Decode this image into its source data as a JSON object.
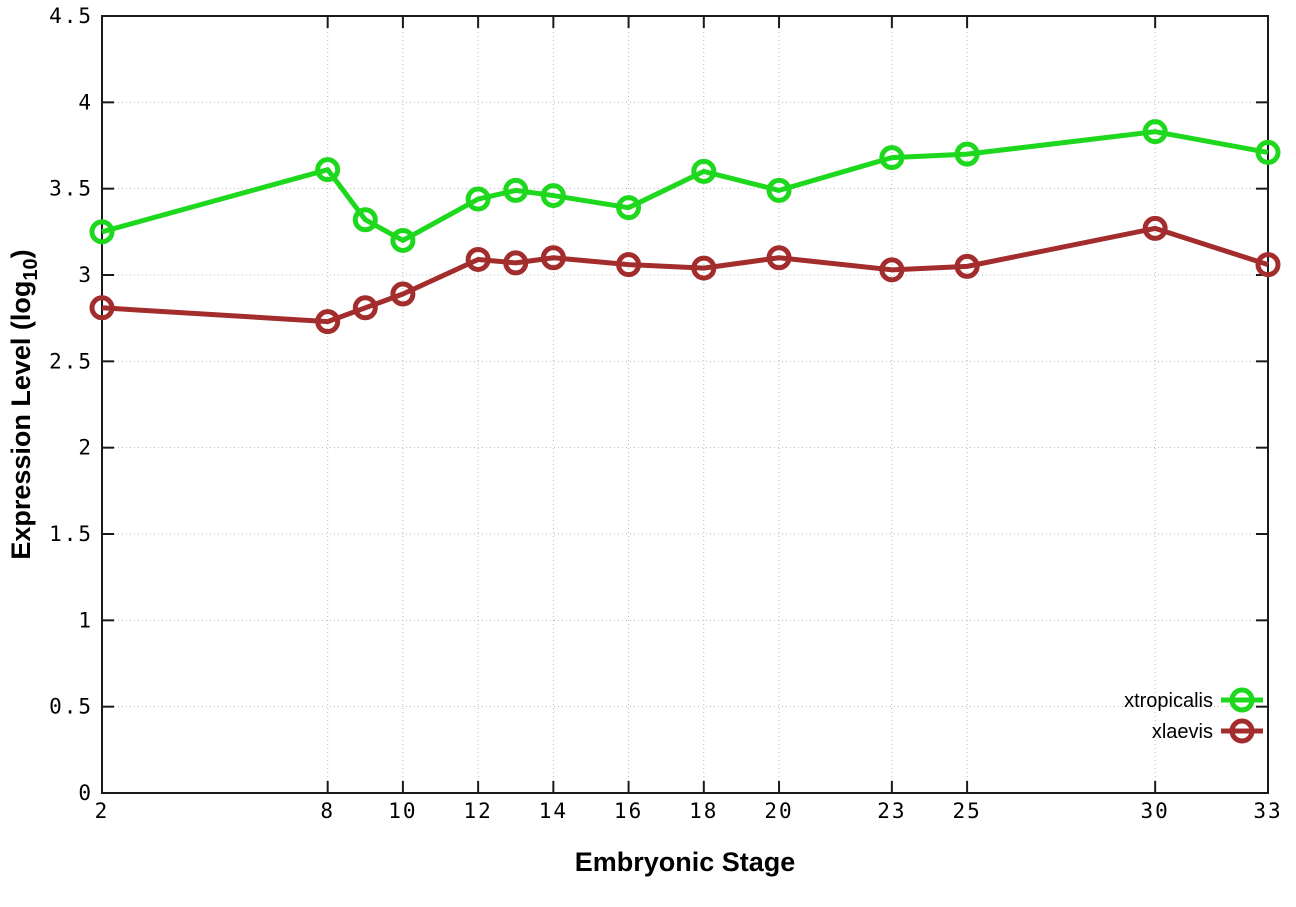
{
  "figure": {
    "background": "#ffffff",
    "title": ""
  },
  "chart_data": {
    "type": "line",
    "title": "",
    "xlabel": "Embryonic Stage",
    "ylabel": "Expression Level (log10)",
    "ylabel_parts": {
      "main": "Expression Level (log",
      "sub": "10",
      "close": ")"
    },
    "xlim": [
      2,
      33
    ],
    "ylim": [
      0,
      4.5
    ],
    "x_ticks": [
      2,
      8,
      10,
      12,
      14,
      16,
      18,
      20,
      23,
      25,
      30,
      33
    ],
    "y_ticks": [
      0,
      0.5,
      1,
      1.5,
      2,
      2.5,
      3,
      3.5,
      4,
      4.5
    ],
    "grid": true,
    "grid_style": "dotted",
    "legend_position": "bottom-right",
    "x": [
      2,
      8,
      9,
      10,
      12,
      13,
      14,
      16,
      18,
      20,
      23,
      25,
      30,
      33
    ],
    "series": [
      {
        "name": "xtropicalis",
        "color": "#1dd81d",
        "marker": "open-circle",
        "values": [
          3.25,
          3.61,
          3.32,
          3.2,
          3.44,
          3.49,
          3.46,
          3.39,
          3.6,
          3.49,
          3.68,
          3.7,
          3.83,
          3.71
        ]
      },
      {
        "name": "xlaevis",
        "color": "#a32c2c",
        "marker": "open-circle",
        "values": [
          2.81,
          2.73,
          2.81,
          2.89,
          3.09,
          3.07,
          3.1,
          3.06,
          3.04,
          3.1,
          3.03,
          3.05,
          3.27,
          3.06
        ]
      }
    ],
    "colors": {
      "grid": "#b8b8b8",
      "border": "#1a1a1a",
      "tick": "#1a1a1a",
      "text": "#000000",
      "background": "#ffffff"
    }
  }
}
